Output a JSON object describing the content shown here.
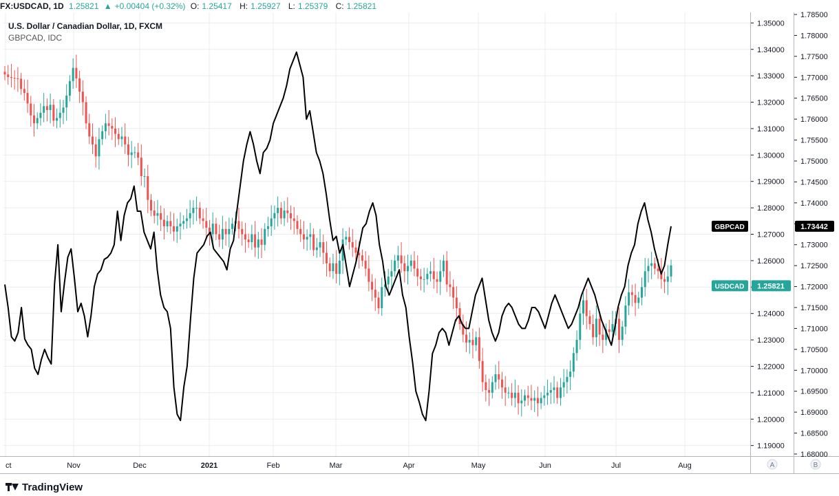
{
  "header": {
    "symbol": "FX:USDCAD, 1D",
    "last": "1.25821",
    "change_arrow": "▲",
    "change": "+0.00404 (+0.32%)",
    "o_label": "O:",
    "o_value": "1.25417",
    "h_label": "H:",
    "h_value": "1.25927",
    "l_label": "L:",
    "l_value": "1.25379",
    "c_label": "C:",
    "c_value": "1.25821"
  },
  "legend": {
    "main": "U.S. Dollar / Canadian Dollar, 1D, FXCM",
    "compare": "GBPCAD, IDC"
  },
  "footer": {
    "brand": "TradingView",
    "logo_icon": "tradingview-logo-icon"
  },
  "scale_buttons": [
    "A",
    "B"
  ],
  "colors": {
    "up": "#26a69a",
    "down": "#ef5350",
    "line": "#000000",
    "grid": "#e9ecf0"
  },
  "chart_data": {
    "type": "line",
    "x_labels": [
      "ct",
      "Nov",
      "Dec",
      "2021",
      "Feb",
      "Mar",
      "Apr",
      "May",
      "Jun",
      "Jul",
      "Aug"
    ],
    "left_axis": {
      "name": "USDCAD",
      "ticks": [
        "1.35000",
        "1.34000",
        "1.33000",
        "1.32000",
        "1.31000",
        "1.30000",
        "1.29000",
        "1.28000",
        "1.27000",
        "1.26000",
        "1.25000",
        "1.24000",
        "1.23000",
        "1.22000",
        "1.21000",
        "1.20000",
        "1.19000"
      ],
      "range": [
        1.186,
        1.354
      ]
    },
    "right_axis": {
      "name": "GBPCAD",
      "ticks": [
        "1.78500",
        "1.78000",
        "1.77500",
        "1.77000",
        "1.76500",
        "1.76000",
        "1.75500",
        "1.75000",
        "1.74500",
        "1.74000",
        "1.73500",
        "1.73000",
        "1.72500",
        "1.72000",
        "1.71500",
        "1.71000",
        "1.70500",
        "1.70000",
        "1.69500",
        "1.69000",
        "1.68500",
        "1.68000"
      ],
      "range": [
        1.6795,
        1.7855
      ]
    },
    "price_labels": [
      {
        "name": "GBPCAD",
        "value": "1.73442",
        "bg": "#000000"
      },
      {
        "name": "USDCAD",
        "value": "1.25821",
        "bg": "#26a69a"
      }
    ],
    "series": [
      {
        "name": "USDCAD",
        "type": "candlestick",
        "closes": [
          1.3305,
          1.3295,
          1.3292,
          1.329,
          1.3289,
          1.325,
          1.3235,
          1.3195,
          1.315,
          1.312,
          1.314,
          1.316,
          1.3185,
          1.317,
          1.319,
          1.313,
          1.314,
          1.316,
          1.318,
          1.3225,
          1.328,
          1.333,
          1.329,
          1.324,
          1.32,
          1.312,
          1.307,
          1.304,
          1.2995,
          1.306,
          1.309,
          1.312,
          1.311,
          1.31,
          1.308,
          1.306,
          1.307,
          1.304,
          1.3,
          1.301,
          1.301,
          1.299,
          1.292,
          1.292,
          1.283,
          1.279,
          1.277,
          1.278,
          1.2755,
          1.273,
          1.275,
          1.273,
          1.271,
          1.273,
          1.274,
          1.275,
          1.276,
          1.278,
          1.28,
          1.28,
          1.276,
          1.275,
          1.2725,
          1.27,
          1.274,
          1.27,
          1.268,
          1.272,
          1.27,
          1.272,
          1.274,
          1.275,
          1.272,
          1.27,
          1.268,
          1.267,
          1.27,
          1.265,
          1.268,
          1.266,
          1.272,
          1.273,
          1.276,
          1.278,
          1.28,
          1.276,
          1.279,
          1.278,
          1.276,
          1.275,
          1.272,
          1.27,
          1.268,
          1.269,
          1.27,
          1.264,
          1.265,
          1.267,
          1.263,
          1.259,
          1.256,
          1.259,
          1.255,
          1.26,
          1.268,
          1.269,
          1.267,
          1.265,
          1.263,
          1.262,
          1.26,
          1.257,
          1.252,
          1.249,
          1.246,
          1.242,
          1.25,
          1.251,
          1.254,
          1.256,
          1.26,
          1.262,
          1.259,
          1.256,
          1.258,
          1.26,
          1.257,
          1.254,
          1.253,
          1.253,
          1.255,
          1.256,
          1.253,
          1.252,
          1.256,
          1.26,
          1.251,
          1.25,
          1.246,
          1.242,
          1.236,
          1.232,
          1.229,
          1.23,
          1.228,
          1.231,
          1.222,
          1.214,
          1.211,
          1.21,
          1.214,
          1.217,
          1.215,
          1.212,
          1.21,
          1.21,
          1.208,
          1.21,
          1.206,
          1.207,
          1.209,
          1.208,
          1.207,
          1.208,
          1.206,
          1.208,
          1.209,
          1.21,
          1.211,
          1.212,
          1.208,
          1.212,
          1.214,
          1.216,
          1.218,
          1.225,
          1.23,
          1.24,
          1.245,
          1.239,
          1.236,
          1.231,
          1.238,
          1.232,
          1.23,
          1.234,
          1.233,
          1.236,
          1.238,
          1.23,
          1.235,
          1.243,
          1.248,
          1.247,
          1.244,
          1.246,
          1.25,
          1.256,
          1.258,
          1.259,
          1.257,
          1.256,
          1.253,
          1.252,
          1.254,
          1.2582
        ]
      },
      {
        "name": "GBPCAD",
        "type": "line",
        "values": [
          1.7205,
          1.715,
          1.708,
          1.707,
          1.709,
          1.715,
          1.7075,
          1.706,
          1.705,
          1.7005,
          1.699,
          1.7025,
          1.705,
          1.703,
          1.7015,
          1.7205,
          1.73,
          1.714,
          1.721,
          1.727,
          1.729,
          1.722,
          1.714,
          1.716,
          1.713,
          1.708,
          1.713,
          1.72,
          1.723,
          1.724,
          1.7265,
          1.727,
          1.728,
          1.73,
          1.738,
          1.731,
          1.737,
          1.74,
          1.741,
          1.744,
          1.738,
          1.738,
          1.733,
          1.731,
          1.729,
          1.733,
          1.724,
          1.718,
          1.715,
          1.714,
          1.71,
          1.696,
          1.6895,
          1.688,
          1.696,
          1.701,
          1.712,
          1.722,
          1.728,
          1.729,
          1.73,
          1.732,
          1.733,
          1.729,
          1.728,
          1.727,
          1.726,
          1.724,
          1.729,
          1.731,
          1.738,
          1.744,
          1.75,
          1.754,
          1.757,
          1.754,
          1.75,
          1.747,
          1.752,
          1.753,
          1.755,
          1.759,
          1.761,
          1.763,
          1.765,
          1.768,
          1.772,
          1.774,
          1.776,
          1.773,
          1.77,
          1.76,
          1.762,
          1.757,
          1.752,
          1.75,
          1.747,
          1.742,
          1.736,
          1.731,
          1.732,
          1.728,
          1.73,
          1.725,
          1.72,
          1.723,
          1.726,
          1.73,
          1.734,
          1.735,
          1.738,
          1.74,
          1.737,
          1.73,
          1.726,
          1.72,
          1.718,
          1.72,
          1.722,
          1.724,
          1.718,
          1.715,
          1.708,
          1.702,
          1.695,
          1.6925,
          1.6895,
          1.688,
          1.695,
          1.704,
          1.706,
          1.709,
          1.71,
          1.709,
          1.706,
          1.709,
          1.712,
          1.713,
          1.711,
          1.71,
          1.71,
          1.714,
          1.718,
          1.72,
          1.722,
          1.717,
          1.712,
          1.709,
          1.707,
          1.709,
          1.713,
          1.715,
          1.716,
          1.715,
          1.713,
          1.711,
          1.71,
          1.71,
          1.712,
          1.715,
          1.715,
          1.714,
          1.712,
          1.71,
          1.713,
          1.716,
          1.718,
          1.716,
          1.714,
          1.712,
          1.71,
          1.711,
          1.713,
          1.715,
          1.718,
          1.72,
          1.722,
          1.72,
          1.718,
          1.715,
          1.712,
          1.71,
          1.708,
          1.706,
          1.71,
          1.715,
          1.718,
          1.72,
          1.725,
          1.728,
          1.73,
          1.735,
          1.738,
          1.74,
          1.736,
          1.733,
          1.729,
          1.726,
          1.723,
          1.725,
          1.73,
          1.7344
        ]
      }
    ]
  }
}
